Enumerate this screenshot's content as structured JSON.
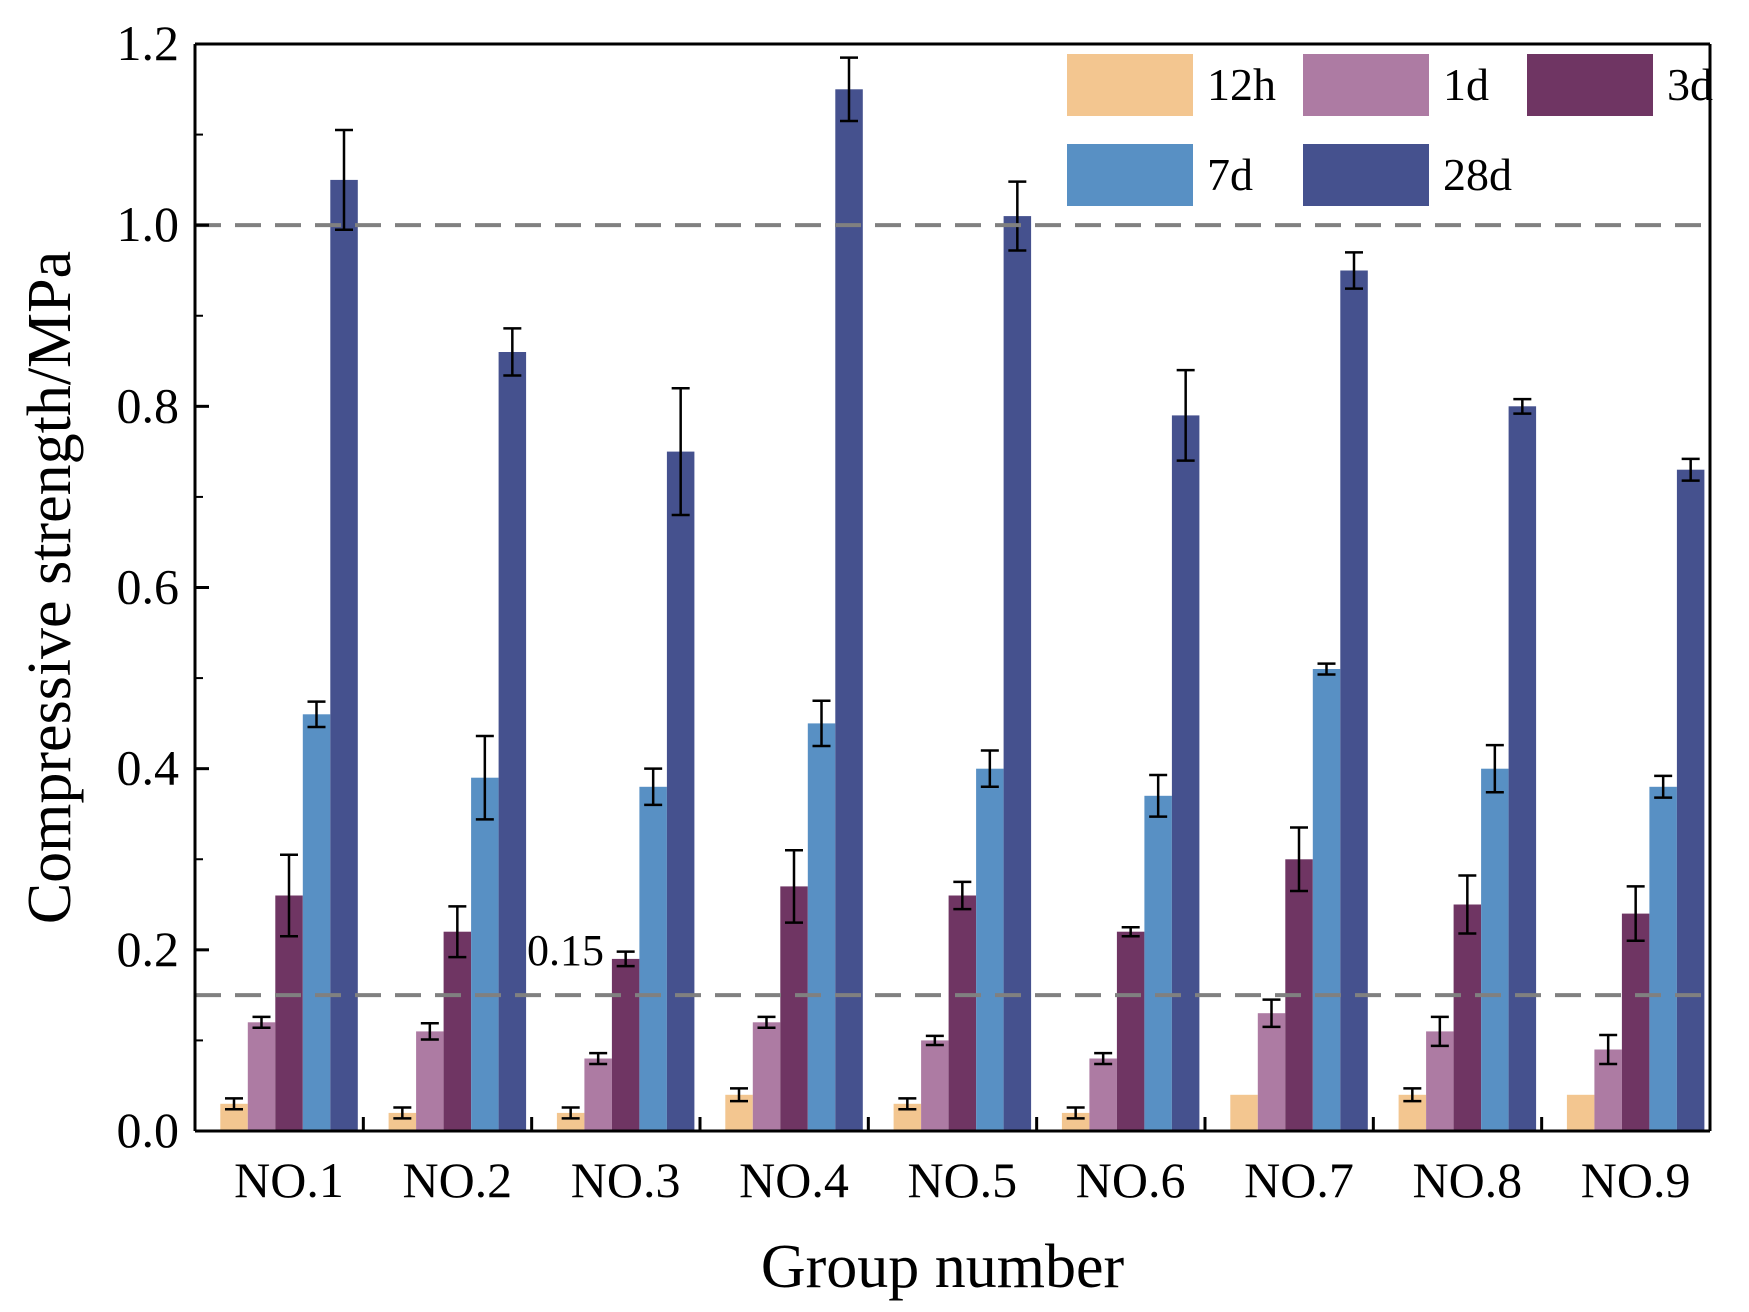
{
  "chart_data": {
    "type": "bar",
    "xlabel": "Group number",
    "ylabel": "Compressive strength/MPa",
    "ylim": [
      0,
      1.2
    ],
    "yticks": [
      "0.0",
      "0.2",
      "0.4",
      "0.6",
      "0.8",
      "1.0",
      "1.2"
    ],
    "categories": [
      "NO.1",
      "NO.2",
      "NO.3",
      "NO.4",
      "NO.5",
      "NO.6",
      "NO.7",
      "NO.8",
      "NO.9"
    ],
    "series": [
      {
        "name": "12h",
        "color": "#F3C690",
        "values": [
          0.03,
          0.02,
          0.02,
          0.04,
          0.03,
          0.02,
          0.04,
          0.04,
          0.04
        ],
        "errors": [
          0.006,
          0.006,
          0.006,
          0.007,
          0.006,
          0.006,
          0.0,
          0.007,
          0.0
        ]
      },
      {
        "name": "1d",
        "color": "#AD7BA3",
        "values": [
          0.12,
          0.11,
          0.08,
          0.12,
          0.1,
          0.08,
          0.13,
          0.11,
          0.09
        ],
        "errors": [
          0.006,
          0.009,
          0.006,
          0.006,
          0.005,
          0.006,
          0.015,
          0.016,
          0.016
        ]
      },
      {
        "name": "3d",
        "color": "#6F3563",
        "values": [
          0.26,
          0.22,
          0.19,
          0.27,
          0.26,
          0.22,
          0.3,
          0.25,
          0.24
        ],
        "errors": [
          0.045,
          0.028,
          0.008,
          0.04,
          0.015,
          0.005,
          0.035,
          0.032,
          0.03
        ]
      },
      {
        "name": "7d",
        "color": "#5890C4",
        "values": [
          0.46,
          0.39,
          0.38,
          0.45,
          0.4,
          0.37,
          0.51,
          0.4,
          0.38
        ],
        "errors": [
          0.014,
          0.046,
          0.02,
          0.025,
          0.02,
          0.023,
          0.006,
          0.026,
          0.012
        ]
      },
      {
        "name": "28d",
        "color": "#45518E",
        "values": [
          1.05,
          0.86,
          0.75,
          1.15,
          1.01,
          0.79,
          0.95,
          0.8,
          0.73
        ],
        "errors": [
          0.055,
          0.026,
          0.07,
          0.035,
          0.038,
          0.05,
          0.02,
          0.008,
          0.012
        ]
      }
    ],
    "reference_lines": [
      {
        "y": 1.0,
        "label": ""
      },
      {
        "y": 0.15,
        "label": "0.15"
      }
    ],
    "legend_position": "top-right",
    "grid": false
  }
}
